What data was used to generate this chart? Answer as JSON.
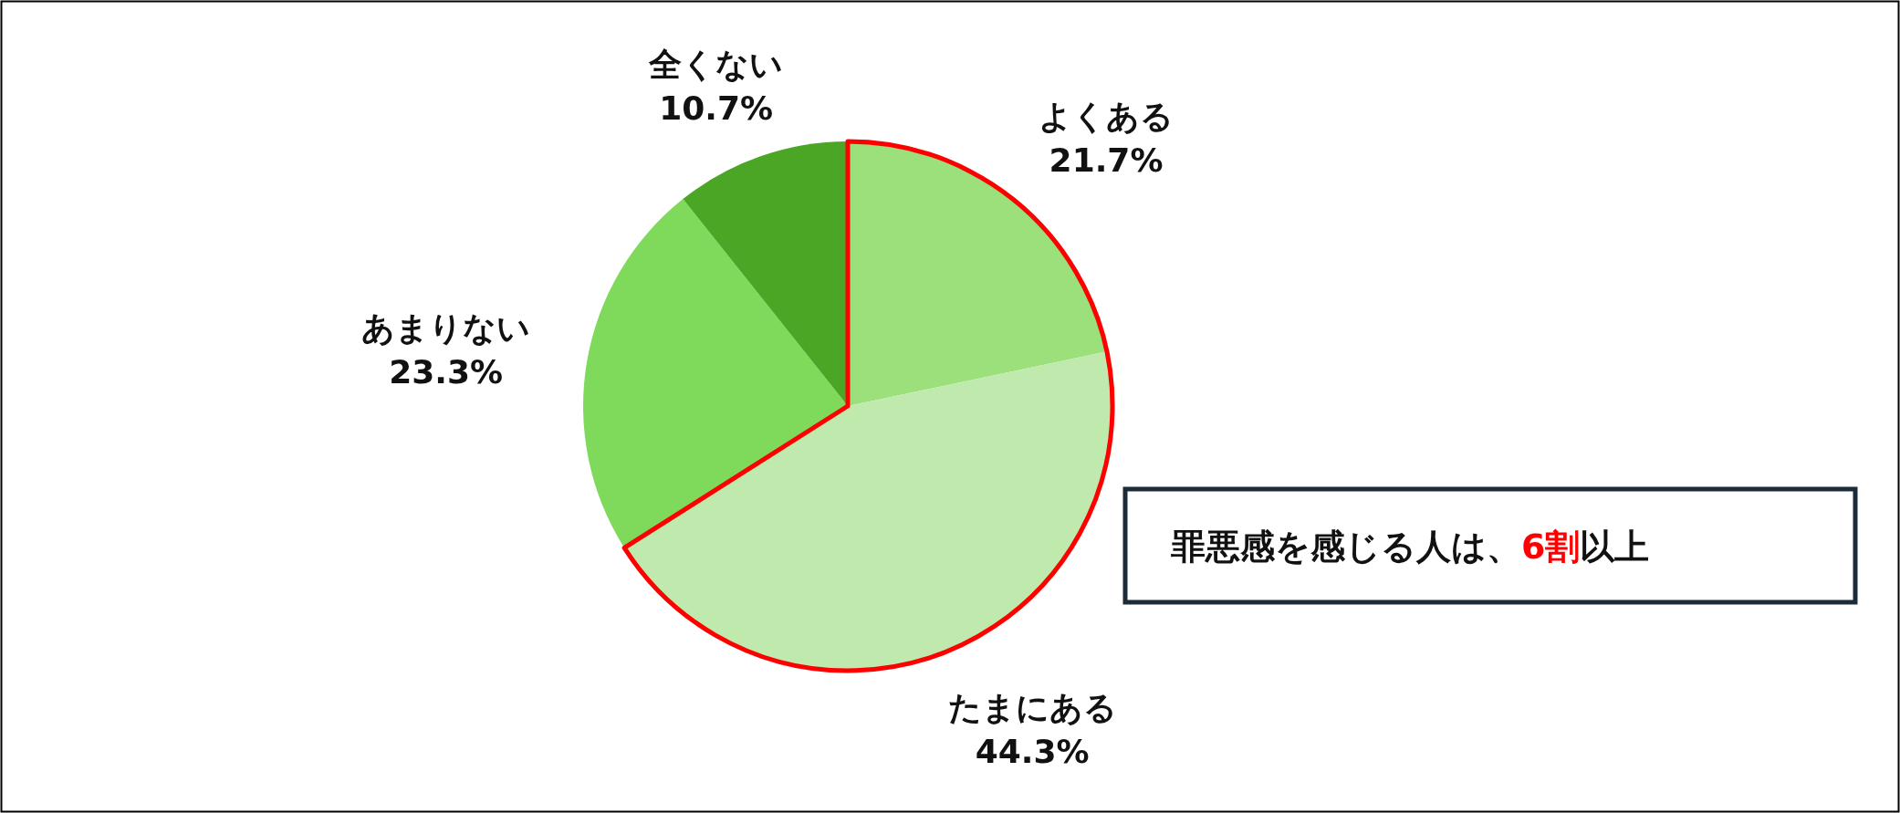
{
  "chart_data": {
    "type": "pie",
    "categories": [
      "よくある",
      "たまにある",
      "あまりない",
      "全くない"
    ],
    "values": [
      21.7,
      44.3,
      23.3,
      10.7
    ],
    "value_labels": [
      "21.7%",
      "44.3%",
      "23.3%",
      "10.7%"
    ],
    "colors": [
      "#9be07a",
      "#c0eaad",
      "#7fd95a",
      "#4ca626"
    ],
    "annotations": [
      "罪悪感を感じる人は、",
      "6割",
      "以上"
    ]
  }
}
